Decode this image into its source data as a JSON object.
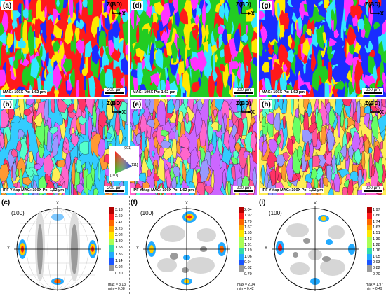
{
  "panels": [
    {
      "label": "(a)",
      "info": "MAG: 100X  Px: 1,62 µm",
      "scale": "200 µm"
    },
    {
      "label": "(d)",
      "info": "MAG: 100X  Px: 1,62 µm",
      "scale": "200 µm"
    },
    {
      "label": "(g)",
      "info": "MAG: 100X  Px: 1,62 µm",
      "scale": "200 µm"
    },
    {
      "label": "(b)",
      "info": "IPF YMap  MAG: 100X  Px: 1,62 µm",
      "scale": "200 µm"
    },
    {
      "label": "(e)",
      "info": "IPF YMap  MAG: 100X  Px: 1,62 µm",
      "scale": "200 µm"
    },
    {
      "label": "(h)",
      "info": "IPF YMap  MAG: 100X  Px: 1,62 µm",
      "scale": "200 µm"
    }
  ],
  "axes": {
    "z": "Z(BD)",
    "x": "X"
  },
  "ipf_key": {
    "top": "[001]",
    "left": "[101]",
    "right": "[111]"
  },
  "pole_figures": [
    {
      "label": "(c)",
      "hkl": "(100)",
      "axis_x": "X",
      "axis_y": "Y",
      "ticks": [
        "3.13",
        "2.69",
        "2.47",
        "2.25",
        "2.02",
        "1.80",
        "1.58",
        "1.36",
        "1.14",
        "0.92",
        "0.70"
      ],
      "max": "max = 3.13",
      "min": "min = 0.08"
    },
    {
      "label": "(f)",
      "hkl": "(100)",
      "axis_x": "X",
      "axis_y": "Y",
      "ticks": [
        "2.04",
        "1.92",
        "1.79",
        "1.67",
        "1.55",
        "1.43",
        "1.31",
        "1.19",
        "1.06",
        "0.94",
        "0.82",
        "0.70"
      ],
      "max": "max = 2.04",
      "min": "min = 0.42"
    },
    {
      "label": "(i)",
      "hkl": "(100)",
      "axis_x": "X",
      "axis_y": "Y",
      "ticks": [
        "1.97",
        "1.86",
        "1.74",
        "1.63",
        "1.51",
        "1.39",
        "1.28",
        "1.16",
        "1.05",
        "0.93",
        "0.82",
        "0.70"
      ],
      "max": "max = 1.97",
      "min": "min = 0.49"
    }
  ],
  "colors": {
    "red": "#ff1a1a",
    "green": "#22cc22",
    "blue": "#1a2cff",
    "yellow": "#ffe800",
    "magenta": "#ff33ff",
    "cyan": "#33e6ff"
  }
}
